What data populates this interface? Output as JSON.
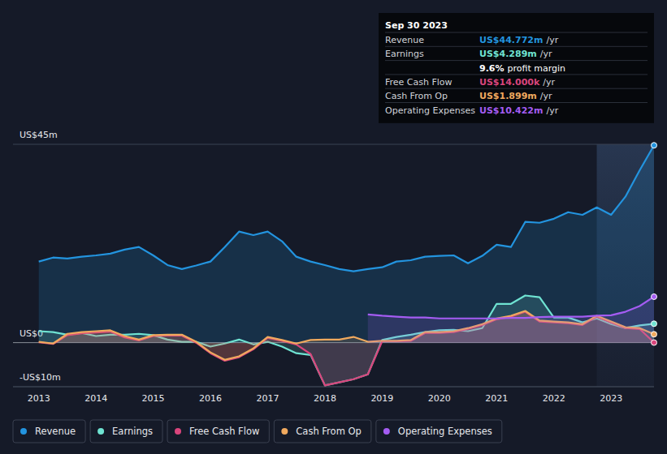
{
  "chart_data": {
    "type": "area",
    "x": [
      2013,
      2013.25,
      2013.5,
      2013.75,
      2014,
      2014.25,
      2014.5,
      2014.75,
      2015,
      2015.25,
      2015.5,
      2015.75,
      2016,
      2016.25,
      2016.5,
      2016.75,
      2017,
      2017.25,
      2017.5,
      2017.75,
      2018,
      2018.25,
      2018.5,
      2018.75,
      2019,
      2019.25,
      2019.5,
      2019.75,
      2020,
      2020.25,
      2020.5,
      2020.75,
      2021,
      2021.25,
      2021.5,
      2021.75,
      2022,
      2022.25,
      2022.5,
      2022.75,
      2023,
      2023.25,
      2023.5,
      2023.75
    ],
    "series": [
      {
        "name": "Revenue",
        "color": "#2394df",
        "values": [
          18.4,
          19.3,
          19.1,
          19.5,
          19.8,
          20.2,
          21.1,
          21.7,
          19.8,
          17.6,
          16.7,
          17.5,
          18.4,
          21.7,
          25.2,
          24.4,
          25.2,
          23.0,
          19.5,
          18.4,
          17.6,
          16.7,
          16.2,
          16.7,
          17.1,
          18.4,
          18.7,
          19.5,
          19.7,
          19.8,
          18.0,
          19.7,
          22.2,
          21.7,
          27.4,
          27.2,
          28.1,
          29.6,
          29.0,
          30.7,
          29.0,
          33.1,
          39.1,
          44.772
        ]
      },
      {
        "name": "Earnings",
        "color": "#6fe3d2",
        "values": [
          2.6,
          2.4,
          1.8,
          2.2,
          1.5,
          1.8,
          1.8,
          2.0,
          1.7,
          0.7,
          0.2,
          0.2,
          -0.9,
          -0.2,
          0.7,
          -0.4,
          0.2,
          -0.9,
          -2.4,
          -2.8,
          -9.7,
          -9.0,
          -8.3,
          -7.2,
          0.6,
          1.3,
          1.8,
          2.4,
          2.8,
          2.9,
          2.6,
          3.3,
          8.8,
          8.8,
          10.7,
          10.3,
          5.7,
          5.7,
          4.6,
          5.5,
          4.2,
          3.3,
          3.9,
          4.289
        ]
      },
      {
        "name": "Free Cash Flow",
        "color": "#d9457c",
        "values": [
          0.1,
          -0.3,
          1.7,
          2.1,
          2.3,
          2.5,
          1.2,
          0.5,
          1.5,
          1.6,
          1.6,
          0.0,
          -2.4,
          -4.1,
          -3.3,
          -1.5,
          1.1,
          0.4,
          -0.4,
          -2.6,
          -9.7,
          -9.0,
          -8.3,
          -7.2,
          0.3,
          0.3,
          0.4,
          2.2,
          2.2,
          2.4,
          3.1,
          4.0,
          5.3,
          5.9,
          7.0,
          4.8,
          4.6,
          4.4,
          4.0,
          5.9,
          4.6,
          3.3,
          3.1,
          0.014
        ]
      },
      {
        "name": "Cash From Op",
        "color": "#f0a95e",
        "values": [
          0.2,
          -0.2,
          2.0,
          2.4,
          2.6,
          2.8,
          1.5,
          0.7,
          1.7,
          1.8,
          1.8,
          0.2,
          -2.2,
          -3.9,
          -3.1,
          -1.3,
          1.3,
          0.6,
          -0.2,
          0.6,
          0.7,
          0.7,
          1.3,
          0.2,
          0.4,
          0.4,
          0.6,
          2.4,
          2.4,
          2.6,
          3.3,
          4.2,
          5.5,
          6.1,
          7.2,
          5.0,
          4.8,
          4.6,
          4.2,
          6.1,
          4.8,
          3.5,
          3.3,
          1.899
        ]
      },
      {
        "name": "Operating Expenses",
        "color": "#a45cf2",
        "values": [
          null,
          null,
          null,
          null,
          null,
          null,
          null,
          null,
          null,
          null,
          null,
          null,
          null,
          null,
          null,
          null,
          null,
          null,
          null,
          null,
          null,
          null,
          null,
          6.4,
          6.1,
          5.9,
          5.7,
          5.7,
          5.5,
          5.5,
          5.5,
          5.5,
          5.5,
          5.6,
          5.6,
          5.8,
          5.9,
          5.9,
          5.9,
          6.1,
          6.2,
          7.0,
          8.3,
          10.422
        ]
      }
    ],
    "xlim": [
      2012.55,
      2023.75
    ],
    "xticks": [
      2013,
      2014,
      2015,
      2016,
      2017,
      2018,
      2019,
      2020,
      2021,
      2022,
      2023
    ],
    "ylim": [
      -10,
      45
    ],
    "yticks": [
      {
        "value": -10,
        "label": "-US$10m"
      },
      {
        "value": 0,
        "label": "US$0"
      },
      {
        "value": 45,
        "label": "US$45m"
      }
    ],
    "grid": true,
    "legend": "bottom",
    "annotations": [
      {
        "title": "Sep 30 2023",
        "rows": [
          {
            "label": "Revenue",
            "value": "US$44.772m",
            "unit": "/yr",
            "color": "#2394df"
          },
          {
            "label": "Earnings",
            "value": "US$4.289m",
            "unit": "/yr",
            "color": "#6fe3d2"
          },
          {
            "value": "9.6%",
            "unit": "profit margin"
          },
          {
            "label": "Free Cash Flow",
            "value": "US$14.000k",
            "unit": "/yr",
            "color": "#d9457c"
          },
          {
            "label": "Cash From Op",
            "value": "US$1.899m",
            "unit": "/yr",
            "color": "#f0a95e"
          },
          {
            "label": "Operating Expenses",
            "value": "US$10.422m",
            "unit": "/yr",
            "color": "#a45cf2"
          }
        ]
      }
    ]
  }
}
